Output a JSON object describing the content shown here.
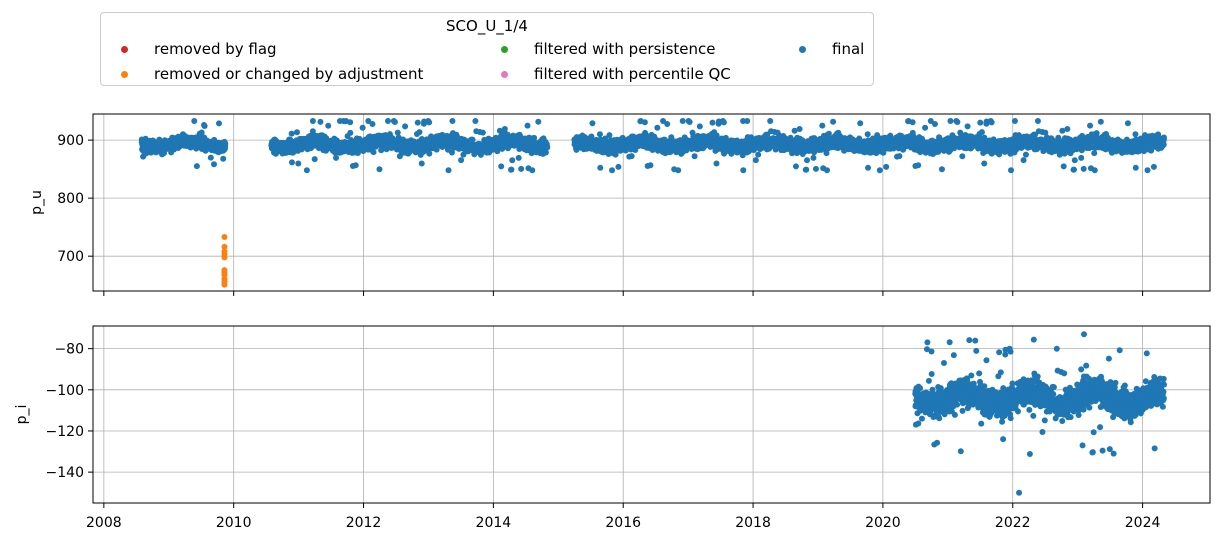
{
  "legend": {
    "title": "SCO_U_1/4",
    "items": [
      {
        "label": "removed by flag",
        "color": "#d62728"
      },
      {
        "label": "removed or changed by adjustment",
        "color": "#ff7f0e"
      },
      {
        "label": "filtered with persistence",
        "color": "#2ca02c"
      },
      {
        "label": "filtered with percentile QC",
        "color": "#e377c2"
      },
      {
        "label": "final",
        "color": "#1f77b4"
      }
    ]
  },
  "chart_data": [
    {
      "type": "scatter",
      "ylabel": "p_u",
      "xlim": [
        "2007-11-01",
        "2025-01-15"
      ],
      "ylim": [
        640,
        945
      ],
      "yticks": [
        700,
        800,
        900
      ],
      "xticks": [
        "2008",
        "2010",
        "2012",
        "2014",
        "2016",
        "2018",
        "2020",
        "2022",
        "2024"
      ],
      "grid": true,
      "show_xtick_labels": false,
      "series": [
        {
          "name": "final",
          "color": "#1f77b4",
          "segments": [
            {
              "start": "2008-08-01",
              "end": "2009-11-15",
              "center": 893,
              "spread": 18
            },
            {
              "start": "2010-08-01",
              "end": "2014-10-31",
              "center": 893,
              "spread": 20
            },
            {
              "start": "2015-04-01",
              "end": "2024-05-01",
              "center": 893,
              "spread": 20
            }
          ],
          "max": 933,
          "min": 848
        },
        {
          "name": "removed or changed by adjustment",
          "color": "#ff7f0e",
          "date": "2009-11-10",
          "values": [
            733,
            716,
            708,
            703,
            698,
            676,
            672,
            668,
            661,
            656,
            651
          ]
        }
      ]
    },
    {
      "type": "scatter",
      "ylabel": "p_i",
      "xlim": [
        "2007-11-01",
        "2025-01-15"
      ],
      "ylim": [
        -155,
        -69
      ],
      "yticks": [
        -140,
        -120,
        -100,
        -80
      ],
      "xticks": [
        "2008",
        "2010",
        "2012",
        "2014",
        "2016",
        "2018",
        "2020",
        "2022",
        "2024"
      ],
      "grid": true,
      "show_xtick_labels": true,
      "series": [
        {
          "name": "final",
          "color": "#1f77b4",
          "segments": [
            {
              "start": "2020-07-01",
              "end": "2024-05-01",
              "center": -104,
              "spread": 12
            }
          ],
          "max": -73,
          "min": -150
        }
      ]
    }
  ]
}
